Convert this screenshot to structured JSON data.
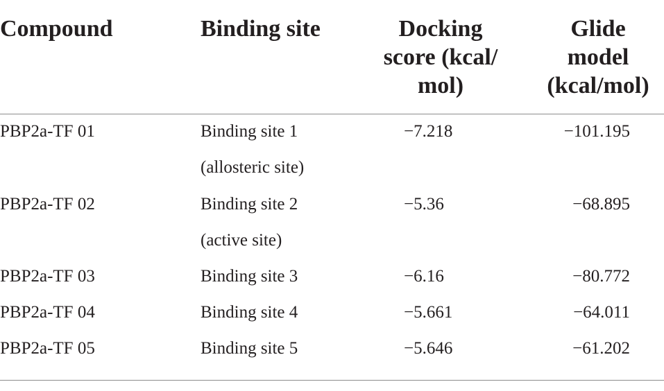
{
  "table": {
    "headers": {
      "compound": "Compound",
      "binding_site": "Binding site",
      "docking_line1": "Docking",
      "docking_line2": "score (kcal/",
      "docking_line3": "mol)",
      "glide_line1": "Glide",
      "glide_line2": "model",
      "glide_line3": "(kcal/mol)"
    },
    "rows": [
      {
        "compound": "PBP2a-TF 01",
        "site_line1": "Binding site 1",
        "site_line2": "(allosteric site)",
        "docking": "−7.218",
        "glide": "−101.195"
      },
      {
        "compound": "PBP2a-TF 02",
        "site_line1": "Binding site 2",
        "site_line2": "(active site)",
        "docking": "−5.36",
        "glide": "−68.895"
      },
      {
        "compound": "PBP2a-TF 03",
        "site_line1": "Binding site 3",
        "docking": "−6.16",
        "glide": "−80.772"
      },
      {
        "compound": "PBP2a-TF 04",
        "site_line1": "Binding site 4",
        "docking": "−5.661",
        "glide": "−64.011"
      },
      {
        "compound": "PBP2a-TF 05",
        "site_line1": "Binding site 5",
        "docking": "−5.646",
        "glide": "−61.202"
      }
    ]
  }
}
